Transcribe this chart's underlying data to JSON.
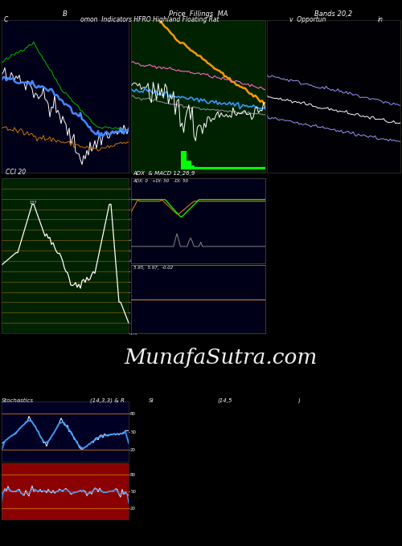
{
  "title_text": "omon  Indicators HFRO Highland Floating Rat",
  "title_right": "v  Opportun",
  "title_far_right": "in",
  "top_left_label": "C",
  "bg_color": "#000000",
  "panel_bg_dark_blue": "#000018",
  "panel_bg_green": "#002200",
  "panel_bg_cci": "#002200",
  "panel_bg_adx": "#000018",
  "panel_bg_stoch": "#000025",
  "panel_bg_rsi": "#8B0000",
  "watermark": "MunafaSutra.com",
  "labels": {
    "panel1": "B",
    "panel2": "Price  Fillings  MA",
    "panel3": "Bands 20,2",
    "panel4": "CCI 20",
    "panel5": "ADX  & MACD 12,26,9",
    "panel6": "Stochastics",
    "panel6b": "(14,3,3) & R",
    "panel7": "SI",
    "panel7b": "(14,5",
    "panel7c": ")"
  },
  "adx_legend": "ADX: 0   +DI: 50   -DI: 50",
  "macd_legend": "5.95,  5.97,  -0.02"
}
